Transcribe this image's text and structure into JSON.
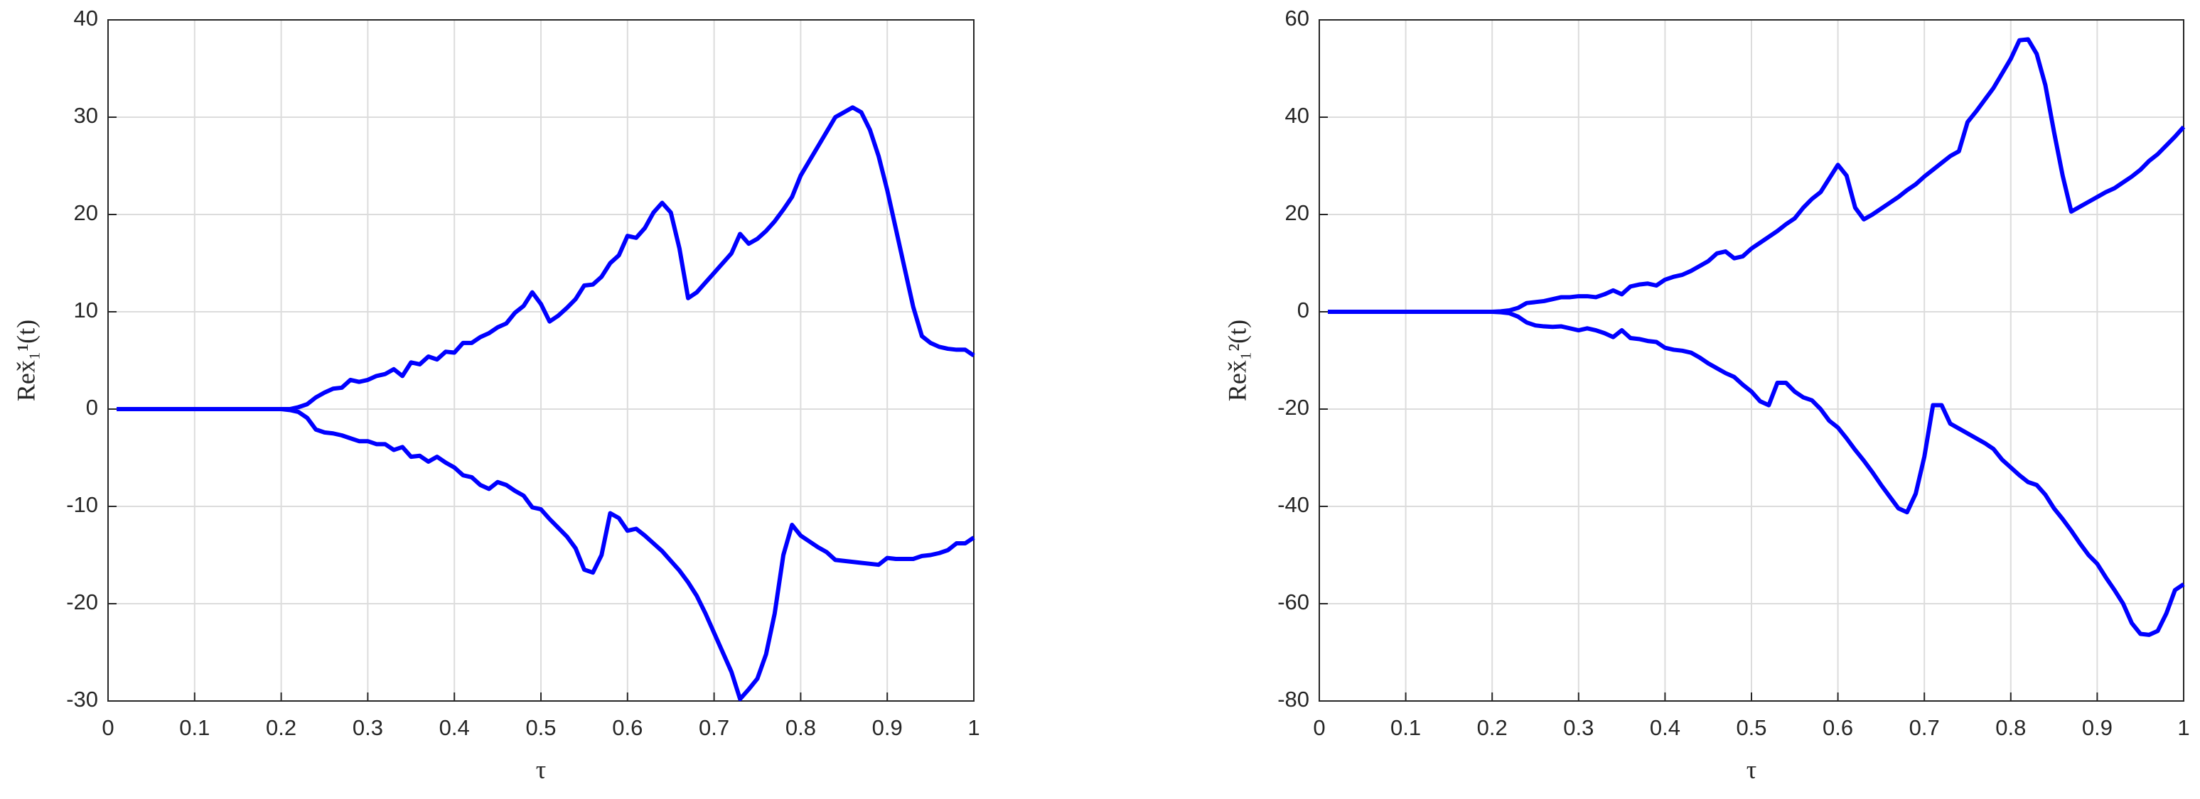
{
  "chart_data": [
    {
      "type": "line",
      "xlabel": "τ",
      "ylabel": "Rex̌₁¹(t)",
      "x": [
        0.01,
        0.1,
        0.2,
        0.21,
        0.22,
        0.23,
        0.24,
        0.25,
        0.26,
        0.27,
        0.28,
        0.29,
        0.3,
        0.31,
        0.32,
        0.33,
        0.34,
        0.35,
        0.36,
        0.37,
        0.38,
        0.39,
        0.4,
        0.41,
        0.42,
        0.43,
        0.44,
        0.45,
        0.46,
        0.47,
        0.48,
        0.49,
        0.5,
        0.51,
        0.52,
        0.53,
        0.54,
        0.55,
        0.56,
        0.57,
        0.58,
        0.59,
        0.6,
        0.61,
        0.62,
        0.63,
        0.64,
        0.65,
        0.66,
        0.67,
        0.68,
        0.69,
        0.7,
        0.71,
        0.72,
        0.73,
        0.74,
        0.75,
        0.76,
        0.77,
        0.78,
        0.79,
        0.8,
        0.81,
        0.82,
        0.83,
        0.84,
        0.85,
        0.86,
        0.87,
        0.88,
        0.89,
        0.9,
        0.91,
        0.92,
        0.93,
        0.94,
        0.95,
        0.96,
        0.97,
        0.98,
        0.99,
        1
      ],
      "series": [
        {
          "color": "#0000ff",
          "values": [
            0,
            0,
            0,
            0,
            0.2,
            0.5,
            1.2,
            1.7,
            2.1,
            2.2,
            3.0,
            2.8,
            3.0,
            3.4,
            3.6,
            4.1,
            3.4,
            4.8,
            4.6,
            5.4,
            5.1,
            5.9,
            5.8,
            6.8,
            6.8,
            7.4,
            7.8,
            8.4,
            8.8,
            9.9,
            10.6,
            12.0,
            10.8,
            9.0,
            9.6,
            10.4,
            11.3,
            12.7,
            12.8,
            13.6,
            15.0,
            15.8,
            17.8,
            17.6,
            18.6,
            20.2,
            21.2,
            20.2,
            16.5,
            11.4,
            12.0,
            13.0,
            14.0,
            15.0,
            16.0,
            18.0,
            17.0,
            17.5,
            18.3,
            19.3,
            20.5,
            21.8,
            24.0,
            25.5,
            27.0,
            28.5,
            30.0,
            30.5,
            31.0,
            30.5,
            28.7,
            26.0,
            22.5,
            18.5,
            14.5,
            10.5,
            7.5,
            6.8,
            6.4,
            6.2,
            6.1,
            6.1,
            5.5
          ]
        },
        {
          "color": "#0000ff",
          "values": [
            0,
            0,
            0,
            -0.1,
            -0.3,
            -0.9,
            -2.1,
            -2.4,
            -2.5,
            -2.7,
            -3.0,
            -3.3,
            -3.3,
            -3.6,
            -3.6,
            -4.2,
            -3.9,
            -4.9,
            -4.8,
            -5.4,
            -4.9,
            -5.5,
            -6.0,
            -6.8,
            -7.0,
            -7.8,
            -8.2,
            -7.5,
            -7.8,
            -8.4,
            -8.9,
            -10.1,
            -10.3,
            -11.3,
            -12.2,
            -13.1,
            -14.3,
            -16.5,
            -16.8,
            -15.0,
            -10.7,
            -11.2,
            -12.5,
            -12.3,
            -13.0,
            -13.8,
            -14.6,
            -15.6,
            -16.6,
            -17.8,
            -19.2,
            -21.0,
            -23.0,
            -25.0,
            -27.0,
            -29.8,
            -28.8,
            -27.7,
            -25.2,
            -21.0,
            -15.0,
            -11.9,
            -13.0,
            -13.6,
            -14.2,
            -14.7,
            -15.5,
            -15.6,
            -15.7,
            -15.8,
            -15.9,
            -16.0,
            -15.3,
            -15.4,
            -15.4,
            -15.4,
            -15.1,
            -15.0,
            -14.8,
            -14.5,
            -13.8,
            -13.8,
            -13.2
          ]
        }
      ],
      "xlim": [
        0,
        1
      ],
      "xticks": [
        0,
        0.1,
        0.2,
        0.3,
        0.4,
        0.5,
        0.6,
        0.7,
        0.8,
        0.9,
        1
      ],
      "ylim": [
        -30,
        40
      ],
      "yticks": [
        -30,
        -20,
        -10,
        0,
        10,
        20,
        30,
        40
      ],
      "grid": true
    },
    {
      "type": "line",
      "xlabel": "τ",
      "ylabel": "Rex̌₁²(t)",
      "x": [
        0.01,
        0.1,
        0.2,
        0.21,
        0.22,
        0.23,
        0.24,
        0.25,
        0.26,
        0.27,
        0.28,
        0.29,
        0.3,
        0.31,
        0.32,
        0.33,
        0.34,
        0.35,
        0.36,
        0.37,
        0.38,
        0.39,
        0.4,
        0.41,
        0.42,
        0.43,
        0.44,
        0.45,
        0.46,
        0.47,
        0.48,
        0.49,
        0.5,
        0.51,
        0.52,
        0.53,
        0.54,
        0.55,
        0.56,
        0.57,
        0.58,
        0.59,
        0.6,
        0.61,
        0.62,
        0.63,
        0.64,
        0.65,
        0.66,
        0.67,
        0.68,
        0.69,
        0.7,
        0.71,
        0.72,
        0.73,
        0.74,
        0.75,
        0.76,
        0.77,
        0.78,
        0.79,
        0.8,
        0.81,
        0.82,
        0.83,
        0.84,
        0.85,
        0.86,
        0.87,
        0.88,
        0.89,
        0.9,
        0.91,
        0.92,
        0.93,
        0.94,
        0.95,
        0.96,
        0.97,
        0.98,
        0.99,
        1
      ],
      "series": [
        {
          "color": "#0000ff",
          "values": [
            0,
            0,
            0,
            0.1,
            0.3,
            0.8,
            1.8,
            2.0,
            2.2,
            2.6,
            3.0,
            3.0,
            3.2,
            3.2,
            3.0,
            3.6,
            4.4,
            3.6,
            5.2,
            5.6,
            5.8,
            5.4,
            6.6,
            7.2,
            7.6,
            8.4,
            9.4,
            10.4,
            12.0,
            12.4,
            11.0,
            11.4,
            13.0,
            14.2,
            15.4,
            16.6,
            18.0,
            19.2,
            21.4,
            23.2,
            24.6,
            27.4,
            30.2,
            28.0,
            21.4,
            19.0,
            20.0,
            21.2,
            22.4,
            23.6,
            25.0,
            26.2,
            27.8,
            29.2,
            30.6,
            32.0,
            33.0,
            39.0,
            41.2,
            43.6,
            46.0,
            49.0,
            52.0,
            55.8,
            56.0,
            53.0,
            46.6,
            37.0,
            28.0,
            20.6,
            21.6,
            22.6,
            23.6,
            24.6,
            25.4,
            26.6,
            27.8,
            29.2,
            31.0,
            32.4,
            34.2,
            36.0,
            38.0
          ]
        },
        {
          "color": "#0000ff",
          "values": [
            0,
            0,
            0,
            -0.1,
            -0.3,
            -1.0,
            -2.2,
            -2.8,
            -3.0,
            -3.1,
            -3.0,
            -3.4,
            -3.8,
            -3.4,
            -3.8,
            -4.4,
            -5.2,
            -3.8,
            -5.4,
            -5.6,
            -6.0,
            -6.2,
            -7.4,
            -7.8,
            -8.0,
            -8.4,
            -9.4,
            -10.6,
            -11.6,
            -12.6,
            -13.4,
            -15.0,
            -16.4,
            -18.4,
            -19.2,
            -14.6,
            -14.6,
            -16.4,
            -17.6,
            -18.2,
            -20.0,
            -22.4,
            -23.8,
            -26.0,
            -28.4,
            -30.6,
            -33.0,
            -35.6,
            -38.0,
            -40.4,
            -41.2,
            -37.4,
            -29.8,
            -19.2,
            -19.2,
            -23.0,
            -24.0,
            -25.0,
            -26.0,
            -27.0,
            -28.2,
            -30.4,
            -32.0,
            -33.6,
            -35.0,
            -35.6,
            -37.6,
            -40.4,
            -42.6,
            -45.0,
            -47.6,
            -50.0,
            -51.8,
            -54.6,
            -57.2,
            -60.0,
            -64.0,
            -66.2,
            -66.4,
            -65.6,
            -62.0,
            -57.2,
            -56.0
          ]
        }
      ],
      "xlim": [
        0,
        1
      ],
      "xticks": [
        0,
        0.1,
        0.2,
        0.3,
        0.4,
        0.5,
        0.6,
        0.7,
        0.8,
        0.9,
        1
      ],
      "ylim": [
        -80,
        60
      ],
      "yticks": [
        -80,
        -60,
        -40,
        -20,
        0,
        20,
        40,
        60
      ],
      "grid": true
    }
  ]
}
